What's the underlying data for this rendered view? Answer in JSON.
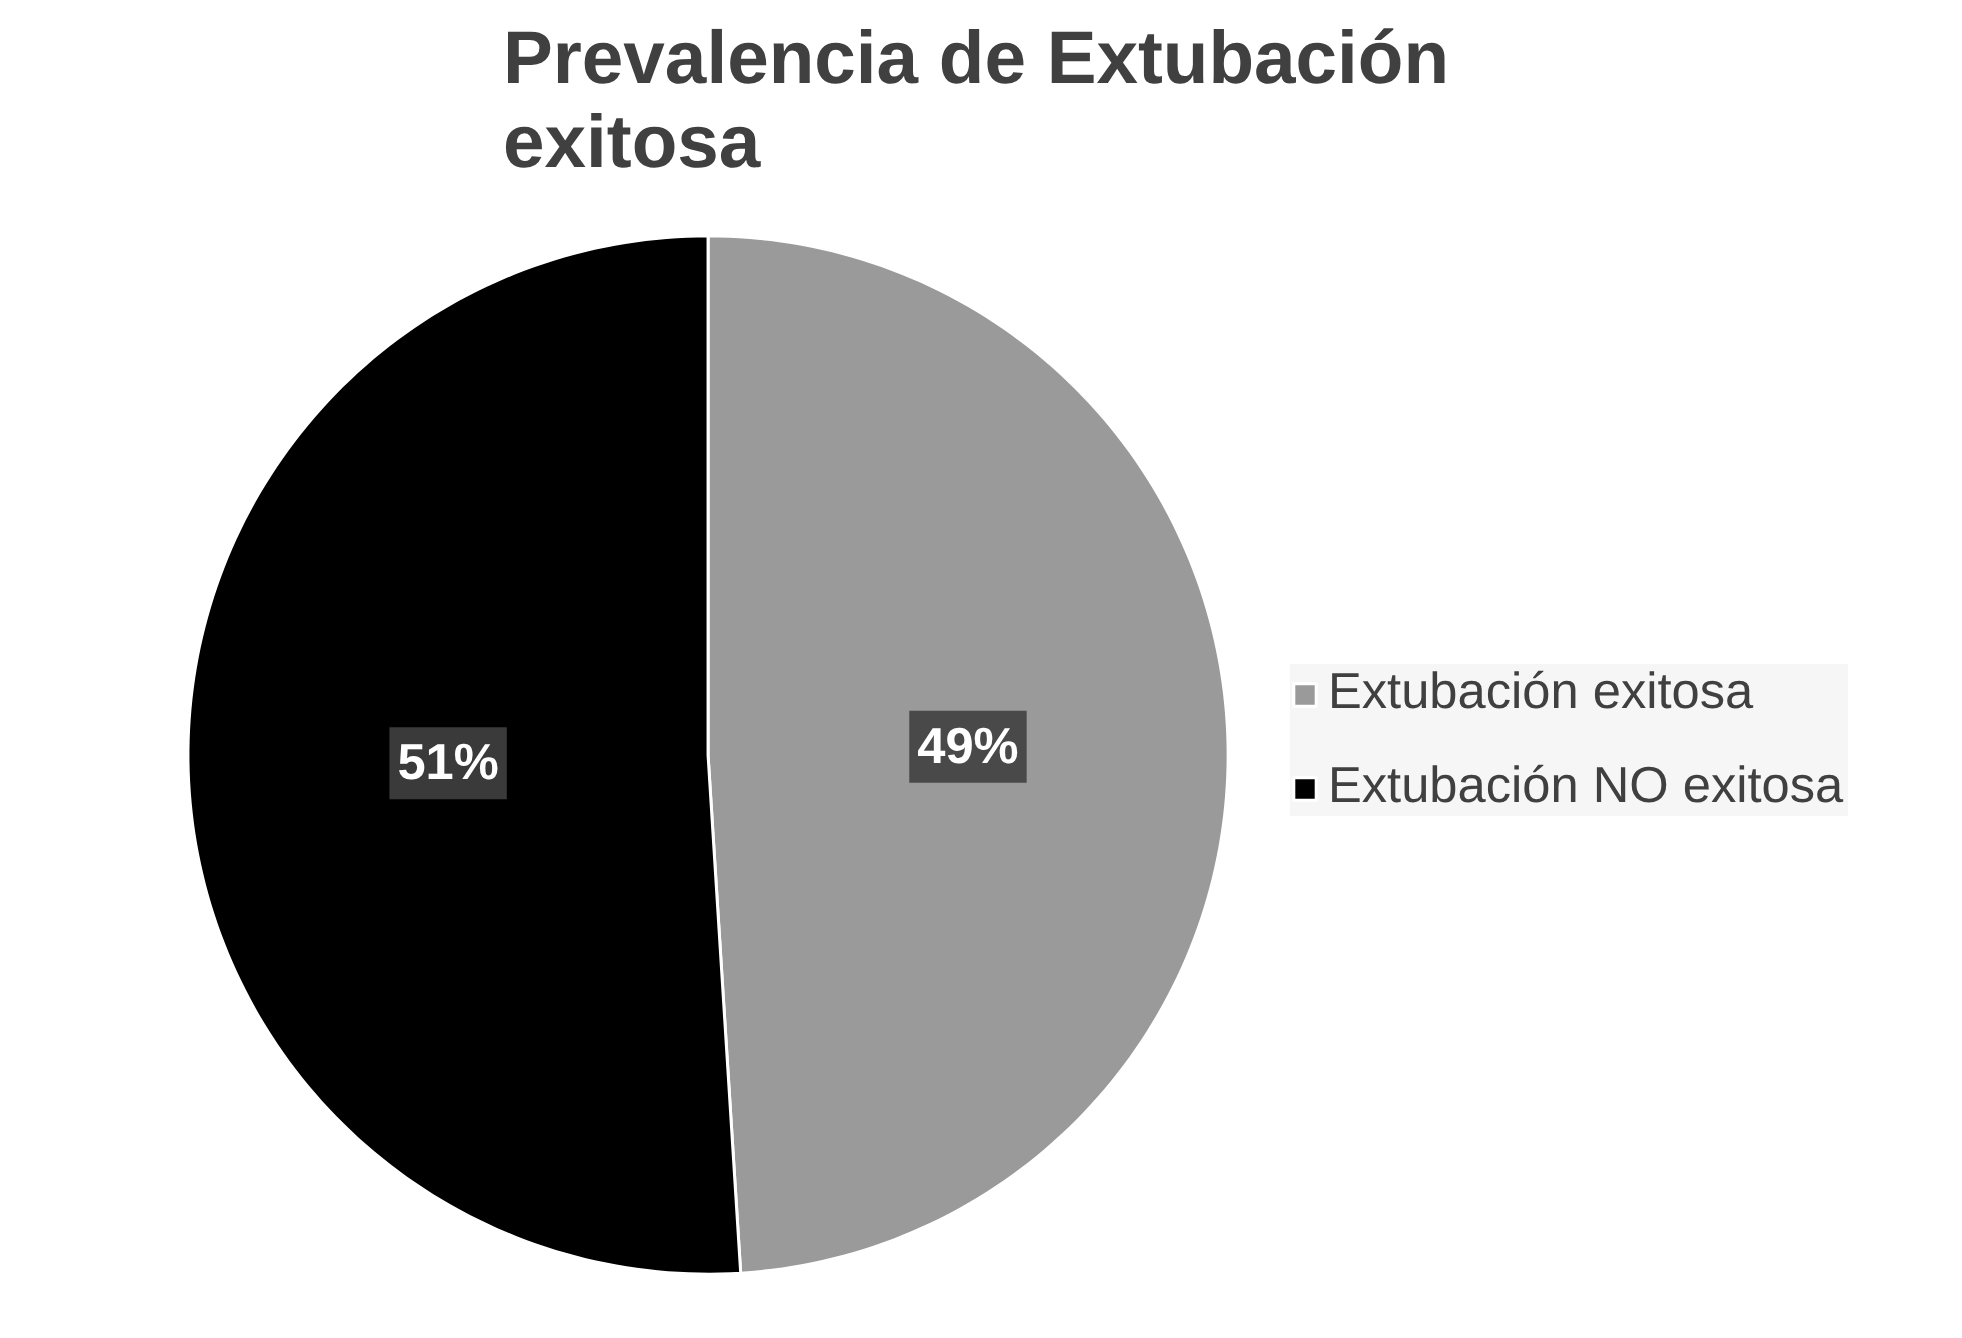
{
  "chart_data": {
    "type": "pie",
    "title": "Prevalencia de Extubación\nexitosa",
    "categories": [
      "Extubación exitosa",
      "Extubación NO exitosa"
    ],
    "values": [
      49,
      51
    ],
    "colors": [
      "#9a9a9a",
      "#000000"
    ],
    "value_labels": [
      "49%",
      "51%"
    ],
    "legend": "right"
  }
}
